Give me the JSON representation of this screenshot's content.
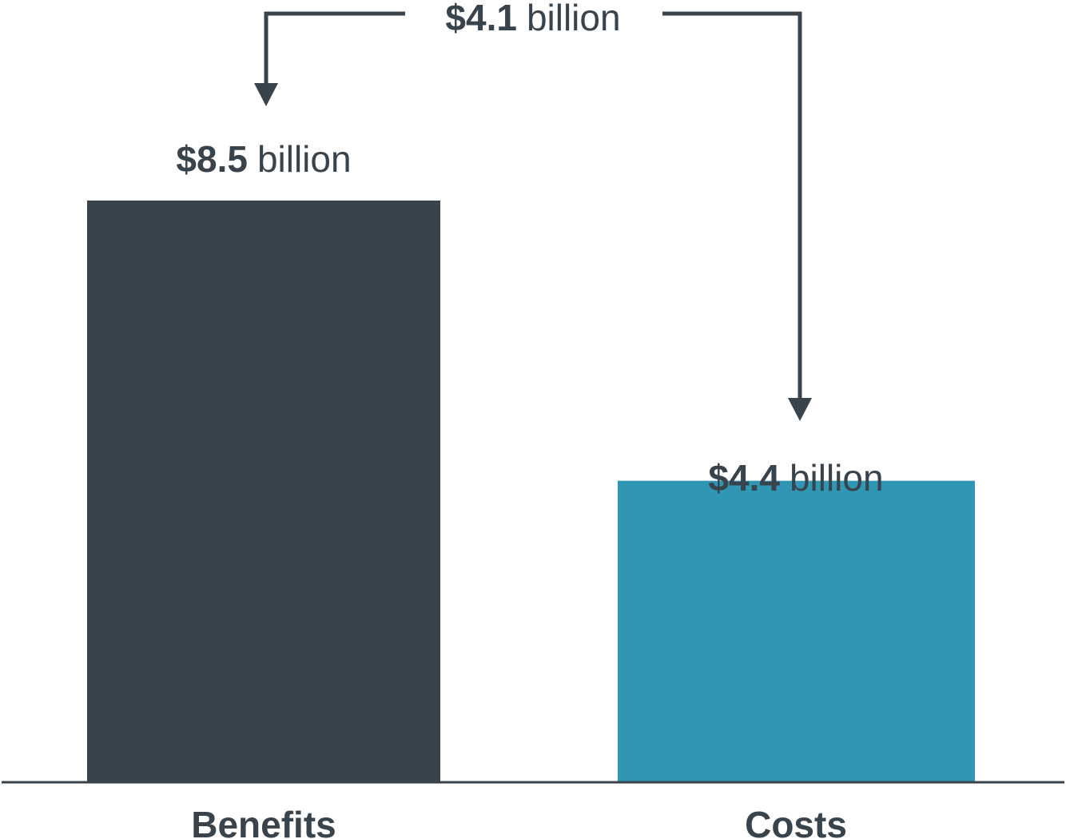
{
  "chart_data": {
    "type": "bar",
    "categories": [
      "Benefits",
      "Costs"
    ],
    "values": [
      8.5,
      4.4
    ],
    "value_labels": [
      {
        "amount": "$8.5",
        "unit": "billion"
      },
      {
        "amount": "$4.4",
        "unit": "billion"
      }
    ],
    "difference": {
      "value": 4.1,
      "amount": "$4.1",
      "unit": "billion"
    },
    "colors": [
      "#39434c",
      "#2f96b4"
    ],
    "axis_color": "#39434c",
    "title": "",
    "xlabel": "",
    "ylabel": "",
    "ylim": [
      0,
      8.5
    ],
    "grid": false,
    "legend": "none"
  }
}
